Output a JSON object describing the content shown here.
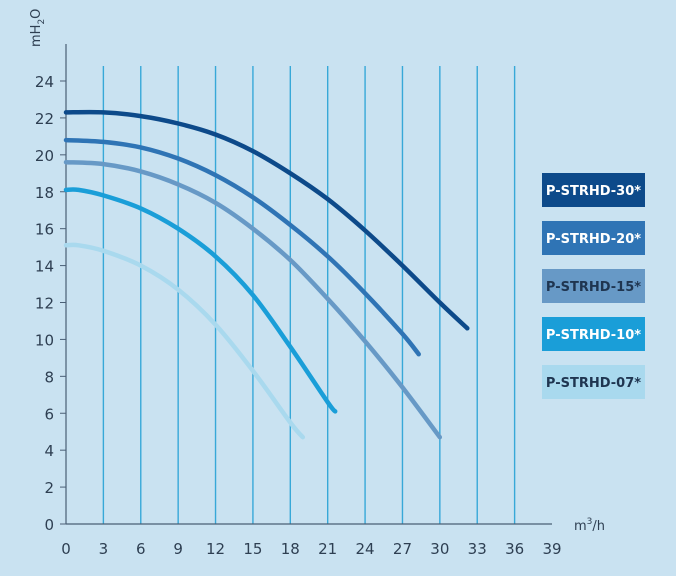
{
  "chart_data": {
    "type": "line",
    "title": "",
    "xlabel": "m3/h",
    "xlabel_base": "m",
    "xlabel_sup": "3",
    "xlabel_tail": "/h",
    "ylabel": "mH2O",
    "ylabel_base": "mH",
    "ylabel_sub": "2",
    "ylabel_tail": "O",
    "xlim": [
      0,
      39
    ],
    "ylim": [
      0,
      24
    ],
    "xticks": [
      0,
      3,
      6,
      9,
      12,
      15,
      18,
      21,
      24,
      27,
      30,
      33,
      36,
      39
    ],
    "yticks": [
      0,
      2,
      4,
      6,
      8,
      10,
      12,
      14,
      16,
      18,
      20,
      22,
      24
    ],
    "grid": "vertical",
    "legend_position": "right",
    "series": [
      {
        "name": "P-STRHD-30*",
        "color": "#0d4a8a",
        "label_color": "#ffffff",
        "x": [
          0,
          3,
          6,
          9,
          12,
          15,
          18,
          21,
          24,
          27,
          30,
          32.2
        ],
        "y": [
          22.3,
          22.3,
          22.1,
          21.7,
          21.1,
          20.2,
          19.0,
          17.6,
          15.9,
          14.0,
          12.0,
          10.6
        ]
      },
      {
        "name": "P-STRHD-20*",
        "color": "#2f74b5",
        "label_color": "#ffffff",
        "x": [
          0,
          3,
          6,
          9,
          12,
          15,
          18,
          21,
          24,
          27,
          28.3
        ],
        "y": [
          20.8,
          20.7,
          20.4,
          19.8,
          18.9,
          17.7,
          16.2,
          14.5,
          12.5,
          10.3,
          9.2
        ]
      },
      {
        "name": "P-STRHD-15*",
        "color": "#6799c6",
        "label_color": "#1f3550",
        "x": [
          0,
          3,
          6,
          9,
          12,
          15,
          18,
          21,
          24,
          27,
          30
        ],
        "y": [
          19.6,
          19.5,
          19.1,
          18.4,
          17.4,
          16.0,
          14.3,
          12.2,
          9.9,
          7.4,
          4.7
        ]
      },
      {
        "name": "P-STRHD-10*",
        "color": "#1a9ed8",
        "label_color": "#ffffff",
        "x": [
          0,
          1,
          3,
          6,
          9,
          12,
          15,
          18,
          21,
          21.6
        ],
        "y": [
          18.1,
          18.1,
          17.8,
          17.1,
          16.0,
          14.5,
          12.4,
          9.6,
          6.6,
          6.1
        ]
      },
      {
        "name": "P-STRHD-07*",
        "color": "#a9d9ee",
        "label_color": "#1f3550",
        "x": [
          0,
          1,
          3,
          6,
          9,
          12,
          15,
          18,
          19.0
        ],
        "y": [
          15.1,
          15.1,
          14.8,
          14.0,
          12.7,
          10.8,
          8.3,
          5.5,
          4.7
        ]
      }
    ]
  }
}
